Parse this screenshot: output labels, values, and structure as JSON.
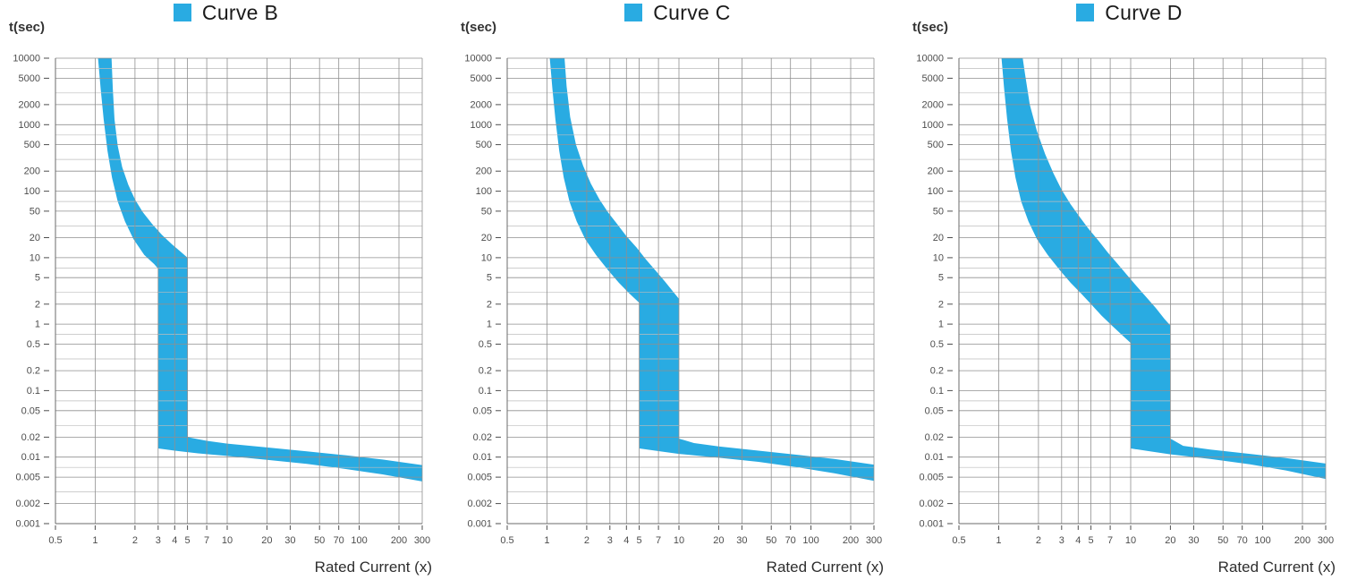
{
  "colors": {
    "band": "#29ABE2",
    "grid": "#8f8f8f",
    "grid_minor": "#bdbdbd",
    "axis": "#6b6b6b",
    "text": "#4d4d4d"
  },
  "chart_data": [
    {
      "type": "area",
      "legend": "Curve B",
      "y_axis_label": "t(sec)",
      "x_axis_label": "Rated Current (x)",
      "x_range": [
        0.5,
        300
      ],
      "y_range": [
        0.001,
        10000
      ],
      "x_ticks": [
        "0.5",
        "1",
        "2",
        "3",
        "4",
        "5",
        "7",
        "10",
        "20",
        "30",
        "50",
        "70",
        "100",
        "200",
        "300"
      ],
      "y_ticks": [
        "10000",
        "5000",
        "2000",
        "1000",
        "500",
        "200",
        "100",
        "50",
        "20",
        "10",
        "5",
        "2",
        "1",
        "0.5",
        "0.2",
        "0.1",
        "0.05",
        "0.02",
        "0.01",
        "0.005",
        "0.002",
        "0.001"
      ],
      "band_outline": [
        [
          1.05,
          10000
        ],
        [
          1.1,
          3500
        ],
        [
          1.16,
          1200
        ],
        [
          1.24,
          400
        ],
        [
          1.34,
          160
        ],
        [
          1.48,
          70
        ],
        [
          1.68,
          35
        ],
        [
          1.95,
          19
        ],
        [
          2.35,
          11
        ],
        [
          2.8,
          8
        ],
        [
          3.0,
          6.8
        ],
        [
          3.0,
          0.0135
        ],
        [
          4,
          0.0125
        ],
        [
          6,
          0.0114
        ],
        [
          10,
          0.0104
        ],
        [
          20,
          0.0091
        ],
        [
          40,
          0.0079
        ],
        [
          80,
          0.0066
        ],
        [
          150,
          0.0055
        ],
        [
          300,
          0.0043
        ],
        [
          300,
          0.0076
        ],
        [
          150,
          0.0092
        ],
        [
          80,
          0.0106
        ],
        [
          40,
          0.0122
        ],
        [
          20,
          0.014
        ],
        [
          10,
          0.016
        ],
        [
          7,
          0.0176
        ],
        [
          5,
          0.02
        ],
        [
          5,
          10
        ],
        [
          4.4,
          12.5
        ],
        [
          3.8,
          16
        ],
        [
          3.2,
          22
        ],
        [
          2.7,
          32
        ],
        [
          2.3,
          48
        ],
        [
          2.0,
          75
        ],
        [
          1.78,
          125
        ],
        [
          1.6,
          230
        ],
        [
          1.48,
          480
        ],
        [
          1.4,
          1200
        ],
        [
          1.36,
          3500
        ],
        [
          1.33,
          10000
        ]
      ]
    },
    {
      "type": "area",
      "legend": "Curve C",
      "y_axis_label": "t(sec)",
      "x_axis_label": "Rated Current (x)",
      "x_range": [
        0.5,
        300
      ],
      "y_range": [
        0.001,
        10000
      ],
      "x_ticks": [
        "0.5",
        "1",
        "2",
        "3",
        "4",
        "5",
        "7",
        "10",
        "20",
        "30",
        "50",
        "70",
        "100",
        "200",
        "300"
      ],
      "y_ticks": [
        "10000",
        "5000",
        "2000",
        "1000",
        "500",
        "200",
        "100",
        "50",
        "20",
        "10",
        "5",
        "2",
        "1",
        "0.5",
        "0.2",
        "0.1",
        "0.05",
        "0.02",
        "0.01",
        "0.005",
        "0.002",
        "0.001"
      ],
      "band_outline": [
        [
          1.05,
          10000
        ],
        [
          1.1,
          3500
        ],
        [
          1.16,
          1200
        ],
        [
          1.24,
          400
        ],
        [
          1.34,
          160
        ],
        [
          1.48,
          70
        ],
        [
          1.68,
          35
        ],
        [
          1.95,
          19
        ],
        [
          2.35,
          11
        ],
        [
          2.9,
          6.5
        ],
        [
          3.5,
          4.2
        ],
        [
          4.2,
          2.9
        ],
        [
          5.0,
          2.1
        ],
        [
          5.0,
          0.0135
        ],
        [
          7,
          0.0123
        ],
        [
          10,
          0.0112
        ],
        [
          20,
          0.0098
        ],
        [
          40,
          0.0085
        ],
        [
          80,
          0.007
        ],
        [
          150,
          0.0057
        ],
        [
          300,
          0.0044
        ],
        [
          300,
          0.0077
        ],
        [
          150,
          0.0094
        ],
        [
          80,
          0.0108
        ],
        [
          40,
          0.0125
        ],
        [
          20,
          0.0145
        ],
        [
          13,
          0.0163
        ],
        [
          10,
          0.019
        ],
        [
          10,
          2.4
        ],
        [
          9.0,
          3.1
        ],
        [
          7.8,
          4.4
        ],
        [
          6.6,
          6.5
        ],
        [
          5.6,
          9.5
        ],
        [
          4.8,
          14
        ],
        [
          4.0,
          21
        ],
        [
          3.4,
          32
        ],
        [
          2.9,
          48
        ],
        [
          2.5,
          75
        ],
        [
          2.15,
          130
        ],
        [
          1.88,
          240
        ],
        [
          1.66,
          500
        ],
        [
          1.5,
          1300
        ],
        [
          1.41,
          3800
        ],
        [
          1.36,
          10000
        ]
      ]
    },
    {
      "type": "area",
      "legend": "Curve D",
      "y_axis_label": "t(sec)",
      "x_axis_label": "Rated Current (x)",
      "x_range": [
        0.5,
        300
      ],
      "y_range": [
        0.001,
        10000
      ],
      "x_ticks": [
        "0.5",
        "1",
        "2",
        "3",
        "4",
        "5",
        "7",
        "10",
        "20",
        "30",
        "50",
        "70",
        "100",
        "200",
        "300"
      ],
      "y_ticks": [
        "10000",
        "5000",
        "2000",
        "1000",
        "500",
        "200",
        "100",
        "50",
        "20",
        "10",
        "5",
        "2",
        "1",
        "0.5",
        "0.2",
        "0.1",
        "0.05",
        "0.02",
        "0.01",
        "0.005",
        "0.002",
        "0.001"
      ],
      "band_outline": [
        [
          1.05,
          10000
        ],
        [
          1.1,
          3500
        ],
        [
          1.16,
          1200
        ],
        [
          1.24,
          400
        ],
        [
          1.34,
          160
        ],
        [
          1.48,
          70
        ],
        [
          1.68,
          35
        ],
        [
          1.95,
          19
        ],
        [
          2.35,
          11
        ],
        [
          2.9,
          6.5
        ],
        [
          3.5,
          4.2
        ],
        [
          4.2,
          2.9
        ],
        [
          5.0,
          2.0
        ],
        [
          6.0,
          1.35
        ],
        [
          7.2,
          0.95
        ],
        [
          8.5,
          0.7
        ],
        [
          10.0,
          0.52
        ],
        [
          10.0,
          0.0135
        ],
        [
          14,
          0.0122
        ],
        [
          20,
          0.011
        ],
        [
          40,
          0.0094
        ],
        [
          80,
          0.0078
        ],
        [
          150,
          0.0063
        ],
        [
          300,
          0.0047
        ],
        [
          300,
          0.008
        ],
        [
          150,
          0.0097
        ],
        [
          80,
          0.0112
        ],
        [
          40,
          0.013
        ],
        [
          25,
          0.0148
        ],
        [
          20,
          0.019
        ],
        [
          20,
          0.95
        ],
        [
          18,
          1.2
        ],
        [
          15.5,
          1.75
        ],
        [
          13,
          2.6
        ],
        [
          11,
          3.8
        ],
        [
          9.3,
          5.6
        ],
        [
          7.9,
          8.2
        ],
        [
          6.7,
          12
        ],
        [
          5.7,
          18
        ],
        [
          4.8,
          27
        ],
        [
          4.1,
          41
        ],
        [
          3.5,
          64
        ],
        [
          3.0,
          105
        ],
        [
          2.6,
          185
        ],
        [
          2.25,
          360
        ],
        [
          1.95,
          800
        ],
        [
          1.72,
          2000
        ],
        [
          1.58,
          6000
        ],
        [
          1.52,
          10000
        ]
      ]
    }
  ]
}
